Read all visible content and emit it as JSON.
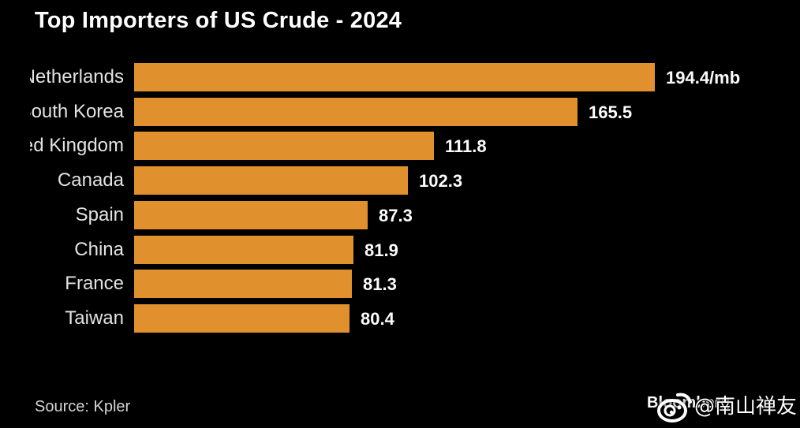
{
  "title": "Top Importers of US Crude - 2024",
  "footer": {
    "source": "Source: Kpler",
    "brand": "Bloomberg",
    "watermark_handle": "@南山禅友",
    "watermark_logo": "weibo-eye-icon"
  },
  "colors": {
    "background": "#000000",
    "bar": "#E0912D",
    "title_text": "#FFFFFF",
    "label_text": "#E3E3E3",
    "value_text": "#FCFCFC",
    "source_text": "#D5D5D5"
  },
  "chart_data": {
    "type": "bar",
    "orientation": "horizontal",
    "title": "Top Importers of US Crude - 2024",
    "categories": [
      "Netherlands",
      "South Korea",
      "United Kingdom",
      "Canada",
      "Spain",
      "China",
      "France",
      "Taiwan"
    ],
    "values": [
      194.4,
      165.5,
      111.8,
      102.3,
      87.3,
      81.9,
      81.3,
      80.4
    ],
    "value_labels": [
      "194.4/mb",
      "165.5",
      "111.8",
      "102.3",
      "87.3",
      "81.9",
      "81.3",
      "80.4"
    ],
    "unit": "/mb",
    "xlim": [
      0,
      200
    ],
    "grid": false,
    "legend": false,
    "bar_color": "#E0912D",
    "source": "Kpler",
    "notes": "category labels are right-aligned and clipped on the left edge of the label column"
  }
}
